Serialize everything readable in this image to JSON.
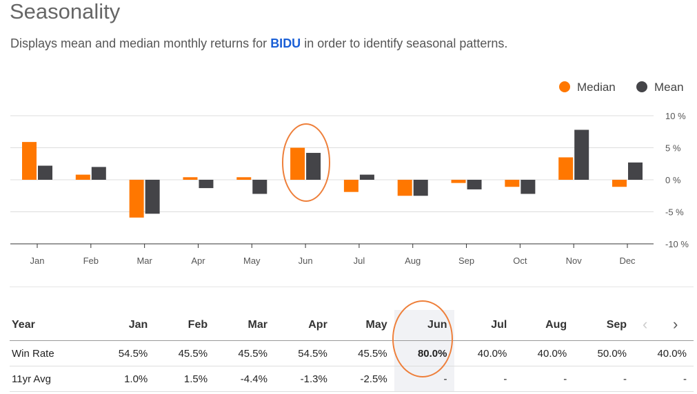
{
  "header": {
    "title": "Seasonality",
    "subtitle_before": "Displays mean and median monthly returns for ",
    "ticker": "BIDU",
    "subtitle_after": " in order to identify seasonal patterns."
  },
  "colors": {
    "median": "#ff7700",
    "mean": "#444448",
    "annotation": "#ee7f3a"
  },
  "chart_data": {
    "type": "bar",
    "categories": [
      "Jan",
      "Feb",
      "Mar",
      "Apr",
      "May",
      "Jun",
      "Jul",
      "Aug",
      "Sep",
      "Oct",
      "Nov",
      "Dec"
    ],
    "series": [
      {
        "name": "Median",
        "values": [
          5.9,
          0.8,
          -5.9,
          0.4,
          0.4,
          5.0,
          -1.9,
          -2.5,
          -0.5,
          -1.1,
          3.5,
          -1.1
        ]
      },
      {
        "name": "Mean",
        "values": [
          2.2,
          2.0,
          -5.3,
          -1.3,
          -2.2,
          4.2,
          0.8,
          -2.5,
          -1.5,
          -2.2,
          7.8,
          2.7
        ]
      }
    ],
    "ylim": [
      -10,
      10
    ],
    "yticks": [
      10,
      5,
      0,
      -5,
      -10
    ],
    "ytick_labels": [
      "10 %",
      "5 %",
      "0 %",
      "-5 %",
      "-10 %"
    ],
    "legend_position": "top-right",
    "grid": true
  },
  "table": {
    "headers": [
      "Year",
      "Jan",
      "Feb",
      "Mar",
      "Apr",
      "May",
      "Jun",
      "Jul",
      "Aug",
      "Sep",
      ""
    ],
    "rows": [
      {
        "label": "Win Rate",
        "cells": [
          {
            "v": "54.5%",
            "c": "neu"
          },
          {
            "v": "45.5%",
            "c": "neu"
          },
          {
            "v": "45.5%",
            "c": "neu"
          },
          {
            "v": "54.5%",
            "c": "neu"
          },
          {
            "v": "45.5%",
            "c": "neu"
          },
          {
            "v": "80.0%",
            "c": "neu bold hl"
          },
          {
            "v": "40.0%",
            "c": "neu"
          },
          {
            "v": "40.0%",
            "c": "neu"
          },
          {
            "v": "50.0%",
            "c": "neu"
          },
          {
            "v": "40.0%",
            "c": "neu"
          }
        ]
      },
      {
        "label": "11yr Avg",
        "cells": [
          {
            "v": "1.0%",
            "c": "pos"
          },
          {
            "v": "1.5%",
            "c": "pos"
          },
          {
            "v": "-4.4%",
            "c": "neg"
          },
          {
            "v": "-1.3%",
            "c": "neg"
          },
          {
            "v": "-2.5%",
            "c": "neg"
          },
          {
            "v": "-",
            "c": "neu hl"
          },
          {
            "v": "-",
            "c": "neu"
          },
          {
            "v": "-",
            "c": "neu"
          },
          {
            "v": "-",
            "c": "neu"
          },
          {
            "v": "-",
            "c": "neu"
          }
        ]
      }
    ]
  },
  "nav": {
    "prev_icon": "chevron-left-icon",
    "prev": "‹",
    "next_icon": "chevron-right-icon",
    "next": "›"
  }
}
